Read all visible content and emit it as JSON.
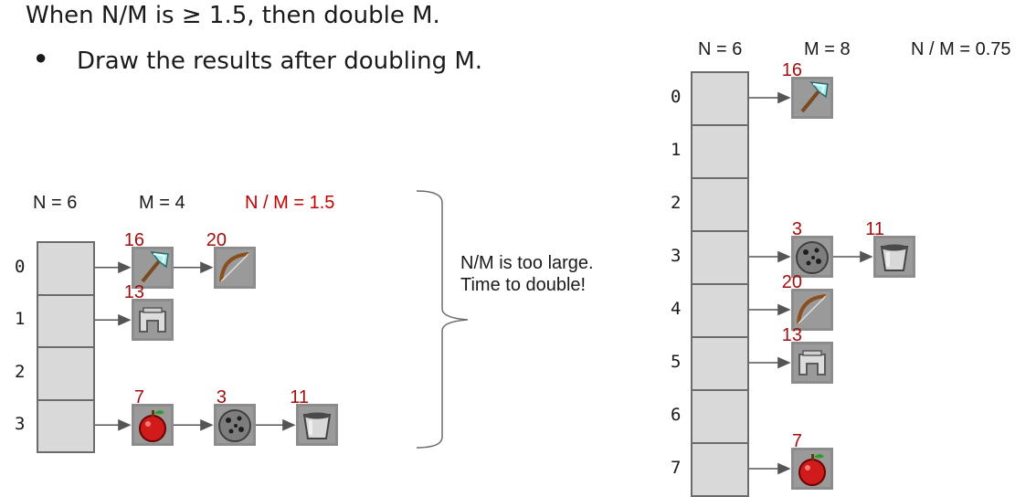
{
  "slide": {
    "title": "When N/M is ≥ 1.5, then double M.",
    "bullet": "Draw the results after doubling M."
  },
  "left_table": {
    "n_label": "N = 6",
    "m_label": "M = 4",
    "ratio_label": "N / M = 1.5",
    "indices": [
      "0",
      "1",
      "2",
      "3"
    ],
    "buckets": [
      [
        {
          "key": "16",
          "item": "diamond-axe"
        },
        {
          "key": "20",
          "item": "bow"
        }
      ],
      [
        {
          "key": "13",
          "item": "iron-helmet"
        }
      ],
      [],
      [
        {
          "key": "7",
          "item": "apple"
        },
        {
          "key": "3",
          "item": "coal-ore"
        },
        {
          "key": "11",
          "item": "bucket"
        }
      ]
    ]
  },
  "note": {
    "line1": "N/M is too large.",
    "line2": "Time to double!"
  },
  "right_table": {
    "n_label": "N = 6",
    "m_label": "M = 8",
    "ratio_label": "N / M = 0.75",
    "indices": [
      "0",
      "1",
      "2",
      "3",
      "4",
      "5",
      "6",
      "7"
    ],
    "buckets": [
      [
        {
          "key": "16",
          "item": "diamond-axe"
        }
      ],
      [],
      [],
      [
        {
          "key": "3",
          "item": "coal-ore"
        },
        {
          "key": "11",
          "item": "bucket"
        }
      ],
      [
        {
          "key": "20",
          "item": "bow"
        }
      ],
      [
        {
          "key": "13",
          "item": "iron-helmet"
        }
      ],
      [],
      [
        {
          "key": "7",
          "item": "apple"
        }
      ]
    ]
  },
  "colors": {
    "ratio_highlight": "#c00000",
    "key_label": "#a01010",
    "cell_fill": "#d9d9d9",
    "cell_border": "#6b6b6b",
    "arrow": "#555555"
  }
}
